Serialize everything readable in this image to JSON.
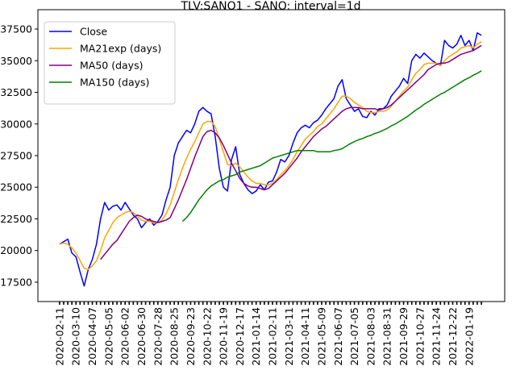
{
  "chart_data": {
    "type": "line",
    "title": "TLV:SANO1 - SANO: interval=1d",
    "categories": [
      "2020-02-11",
      null,
      null,
      null,
      "2020-03-10",
      null,
      null,
      null,
      "2020-04-07",
      null,
      null,
      null,
      "2020-05-05",
      null,
      null,
      null,
      "2020-06-02",
      null,
      null,
      null,
      "2020-06-30",
      null,
      null,
      null,
      "2020-07-28",
      null,
      null,
      null,
      "2020-08-25",
      null,
      null,
      null,
      "2020-09-23",
      null,
      null,
      null,
      "2020-10-22",
      null,
      null,
      null,
      "2020-11-19",
      null,
      null,
      null,
      "2020-12-17",
      null,
      null,
      null,
      "2021-01-14",
      null,
      null,
      null,
      "2021-02-11",
      null,
      null,
      null,
      "2021-03-11",
      null,
      null,
      null,
      "2021-04-11",
      null,
      null,
      null,
      "2021-05-09",
      null,
      null,
      null,
      "2021-06-07",
      null,
      null,
      null,
      "2021-07-05",
      null,
      null,
      null,
      "2021-08-03",
      null,
      null,
      null,
      "2021-08-31",
      null,
      null,
      null,
      "2021-09-29",
      null,
      null,
      null,
      "2021-10-27",
      null,
      null,
      null,
      "2021-11-24",
      null,
      null,
      null,
      "2021-12-22",
      null,
      null,
      null,
      "2022-01-19",
      null,
      null,
      null
    ],
    "series": [
      {
        "name": "Close",
        "color": "blue",
        "values": [
          20500,
          20700,
          20900,
          19800,
          19500,
          18300,
          17200,
          18500,
          19300,
          20500,
          22500,
          23800,
          23200,
          23500,
          23600,
          23200,
          23800,
          23300,
          22800,
          22500,
          21800,
          22200,
          22500,
          22000,
          22300,
          22800,
          24000,
          25000,
          27500,
          28500,
          29000,
          29500,
          29300,
          30000,
          31000,
          31300,
          31000,
          30800,
          29000,
          26500,
          25000,
          24700,
          27200,
          28200,
          26000,
          25300,
          24800,
          24500,
          24700,
          25200,
          24800,
          25400,
          25500,
          26200,
          27200,
          27000,
          27500,
          28500,
          29300,
          29700,
          29900,
          29700,
          30100,
          30300,
          30700,
          31200,
          31600,
          32000,
          33000,
          33500,
          32000,
          31500,
          31000,
          31200,
          30600,
          30500,
          31000,
          30700,
          31200,
          31200,
          31500,
          32200,
          32600,
          33000,
          33600,
          33200,
          35000,
          35500,
          35200,
          35600,
          35300,
          35000,
          34800,
          34600,
          36600,
          36200,
          36000,
          36300,
          37000,
          36200,
          36600,
          35800,
          37200,
          37000
        ]
      },
      {
        "name": "MA21exp (days)",
        "color": "orange",
        "values": [
          20500,
          20600,
          20500,
          20200,
          19800,
          19200,
          18600,
          18500,
          18800,
          19200,
          20000,
          21000,
          21600,
          22200,
          22600,
          22800,
          23000,
          23100,
          23000,
          22700,
          22400,
          22300,
          22300,
          22200,
          22200,
          22400,
          22900,
          23600,
          24600,
          25600,
          26500,
          27300,
          28000,
          28600,
          29300,
          30000,
          30200,
          30200,
          29800,
          28800,
          27800,
          26800,
          26700,
          26900,
          26600,
          26200,
          25800,
          25500,
          25300,
          25300,
          25200,
          25200,
          25300,
          25600,
          26000,
          26300,
          26700,
          27200,
          27800,
          28300,
          28800,
          29100,
          29400,
          29800,
          30000,
          30400,
          30800,
          31200,
          31700,
          32200,
          32200,
          32000,
          31700,
          31500,
          31300,
          31000,
          30900,
          30900,
          31000,
          31000,
          31100,
          31400,
          31800,
          32200,
          32600,
          32900,
          33500,
          34000,
          34300,
          34700,
          34800,
          34800,
          34800,
          34600,
          35000,
          35300,
          35500,
          35700,
          36000,
          36100,
          36200,
          36000,
          36300,
          36500
        ]
      },
      {
        "name": "MA50 (days)",
        "color": "purple",
        "values": [
          null,
          null,
          null,
          null,
          null,
          null,
          null,
          null,
          null,
          null,
          19300,
          19700,
          20100,
          20500,
          20800,
          21300,
          21800,
          22300,
          22600,
          22800,
          22700,
          22500,
          22400,
          22300,
          22200,
          22300,
          22400,
          22600,
          23300,
          24000,
          24800,
          25600,
          26500,
          27400,
          28200,
          29000,
          29400,
          29500,
          29300,
          28900,
          28300,
          27600,
          26900,
          26300,
          25700,
          25300,
          25100,
          25000,
          25000,
          24900,
          24800,
          24900,
          25200,
          25500,
          25800,
          26100,
          26500,
          26900,
          27300,
          27800,
          28200,
          28600,
          29000,
          29300,
          29600,
          29800,
          30100,
          30400,
          30700,
          31000,
          31200,
          31300,
          31300,
          31300,
          31200,
          31200,
          31200,
          31200,
          31100,
          31200,
          31300,
          31500,
          31800,
          32100,
          32400,
          32700,
          33000,
          33300,
          33600,
          33900,
          34300,
          34500,
          34700,
          34800,
          34800,
          34900,
          35100,
          35300,
          35500,
          35600,
          35700,
          35800,
          36000,
          36200
        ]
      },
      {
        "name": "MA150 (days)",
        "color": "green",
        "values": [
          null,
          null,
          null,
          null,
          null,
          null,
          null,
          null,
          null,
          null,
          null,
          null,
          null,
          null,
          null,
          null,
          null,
          null,
          null,
          null,
          null,
          null,
          null,
          null,
          null,
          null,
          null,
          null,
          null,
          null,
          22300,
          22600,
          23000,
          23500,
          24000,
          24400,
          24800,
          25100,
          25300,
          25500,
          25600,
          25800,
          25900,
          26000,
          26200,
          26300,
          26400,
          26500,
          26600,
          26700,
          26900,
          27100,
          27300,
          27400,
          27500,
          27600,
          27700,
          27800,
          27900,
          27900,
          27900,
          27900,
          27900,
          27800,
          27800,
          27800,
          27800,
          27900,
          27950,
          28050,
          28250,
          28450,
          28600,
          28750,
          28850,
          29000,
          29100,
          29250,
          29350,
          29500,
          29650,
          29850,
          30000,
          30200,
          30400,
          30600,
          30850,
          31100,
          31300,
          31550,
          31750,
          31950,
          32150,
          32350,
          32500,
          32700,
          32900,
          33100,
          33300,
          33500,
          33650,
          33850,
          34000,
          34200
        ]
      }
    ],
    "xlim": [
      -5.3,
      108.7
    ],
    "ylim": [
      15970,
      39030
    ],
    "yticks": [
      17500,
      20000,
      22500,
      25000,
      27500,
      30000,
      32500,
      35000,
      37500
    ],
    "legend": "upper left"
  }
}
